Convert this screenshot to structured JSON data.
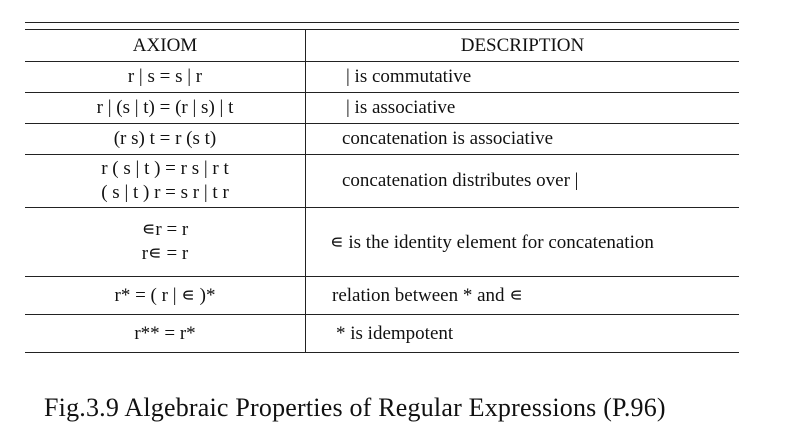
{
  "table": {
    "headers": {
      "axiom": "AXIOM",
      "description": "DESCRIPTION"
    },
    "rows": [
      {
        "axiom": [
          "r | s = s | r"
        ],
        "description": "|  is commutative"
      },
      {
        "axiom": [
          "r | (s | t) =  (r | s) | t"
        ],
        "description": "|  is associative"
      },
      {
        "axiom": [
          "(r  s) t =  r (s t)"
        ],
        "description": "concatenation  is associative"
      },
      {
        "axiom": [
          "r ( s | t ) = r s | r t",
          "( s | t ) r = s r | t r"
        ],
        "description": "concatenation distributes over |"
      },
      {
        "axiom": [
          "∊r = r",
          "r∊ = r"
        ],
        "description": "∊ is the identity element for concatenation"
      },
      {
        "axiom": [
          "r* = ( r | ∊ )*"
        ],
        "description": "relation between * and ∊"
      },
      {
        "axiom": [
          "r** = r*"
        ],
        "description": "*  is idempotent"
      }
    ]
  },
  "caption": "Fig.3.9 Algebraic Properties of Regular Expressions (P.96)"
}
